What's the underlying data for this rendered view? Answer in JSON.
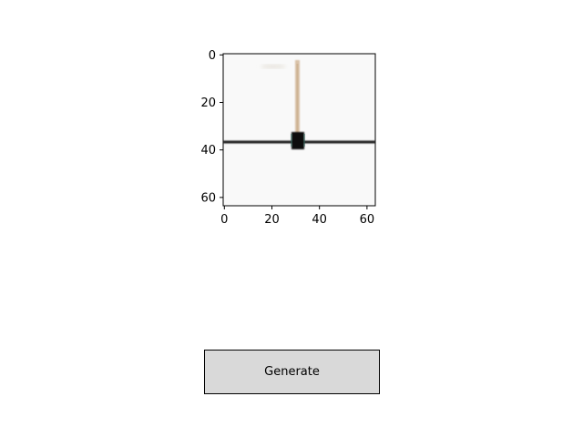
{
  "image_axes": {
    "x_ticks": [
      "0",
      "20",
      "40",
      "60"
    ],
    "y_ticks": [
      "0",
      "20",
      "40",
      "60"
    ],
    "x_range": [
      0,
      63
    ],
    "y_range": [
      0,
      63
    ]
  },
  "controls": {
    "generate_label": "Generate"
  }
}
